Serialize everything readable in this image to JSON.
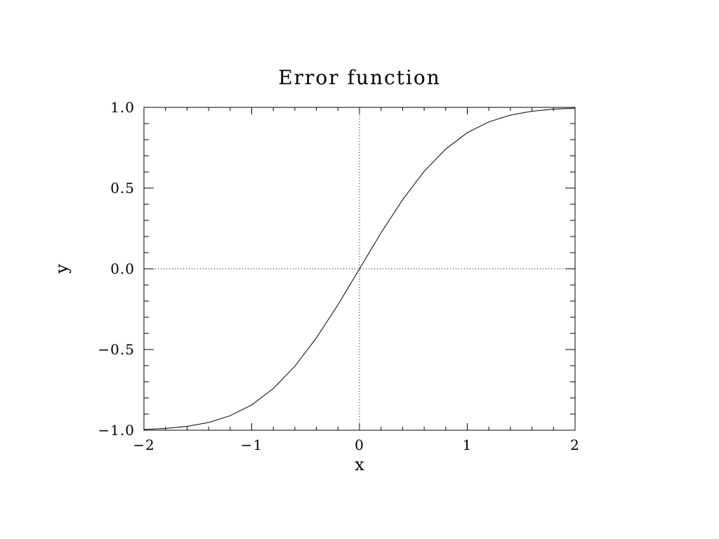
{
  "chart_data": {
    "type": "line",
    "title": "Error function",
    "xlabel": "x",
    "ylabel": "y",
    "xlim": [
      -2,
      2
    ],
    "ylim": [
      -1.0,
      1.0
    ],
    "xticks": [
      -2,
      -1,
      0,
      1,
      2
    ],
    "xtick_labels": [
      "−2",
      "−1",
      "0",
      "1",
      "2"
    ],
    "yticks": [
      -1.0,
      -0.5,
      0.0,
      0.5,
      1.0
    ],
    "ytick_labels": [
      "−1.0",
      "−0.5",
      "0.0",
      "0.5",
      "1.0"
    ],
    "grid": false,
    "zero_lines": true,
    "line_color": "#000000",
    "series": [
      {
        "x": [
          -2.0,
          -1.8,
          -1.6,
          -1.4,
          -1.2,
          -1.0,
          -0.8,
          -0.6,
          -0.4,
          -0.2,
          0.0,
          0.2,
          0.4,
          0.6,
          0.8,
          1.0,
          1.2,
          1.4,
          1.6,
          1.8,
          2.0
        ],
        "y": [
          -0.995,
          -0.989,
          -0.976,
          -0.952,
          -0.91,
          -0.843,
          -0.742,
          -0.604,
          -0.428,
          -0.223,
          0.0,
          0.223,
          0.428,
          0.604,
          0.742,
          0.843,
          0.91,
          0.952,
          0.976,
          0.989,
          0.995
        ]
      }
    ]
  }
}
